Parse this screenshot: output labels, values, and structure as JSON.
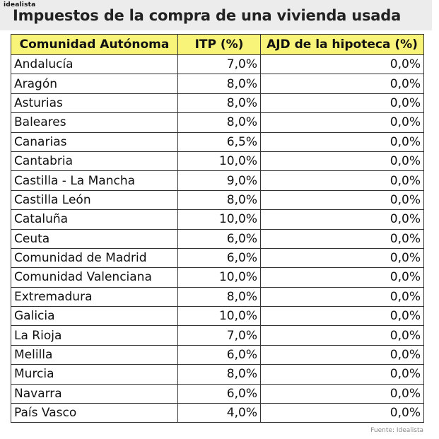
{
  "header": {
    "brand": "idealista",
    "title": "Impuestos de la compra de una vivienda usada"
  },
  "table": {
    "columns": [
      "Comunidad Autónoma",
      "ITP (%)",
      "AJD de la hipoteca (%)"
    ],
    "rows": [
      {
        "region": "Andalucía",
        "itp": "7,0%",
        "ajd": "0,0%"
      },
      {
        "region": "Aragón",
        "itp": "8,0%",
        "ajd": "0,0%"
      },
      {
        "region": "Asturias",
        "itp": "8,0%",
        "ajd": "0,0%"
      },
      {
        "region": "Baleares",
        "itp": "8,0%",
        "ajd": "0,0%"
      },
      {
        "region": "Canarias",
        "itp": "6,5%",
        "ajd": "0,0%"
      },
      {
        "region": "Cantabria",
        "itp": "10,0%",
        "ajd": "0,0%"
      },
      {
        "region": "Castilla - La Mancha",
        "itp": "9,0%",
        "ajd": "0,0%"
      },
      {
        "region": "Castilla León",
        "itp": "8,0%",
        "ajd": "0,0%"
      },
      {
        "region": "Cataluña",
        "itp": "10,0%",
        "ajd": "0,0%"
      },
      {
        "region": "Ceuta",
        "itp": "6,0%",
        "ajd": "0,0%"
      },
      {
        "region": "Comunidad de Madrid",
        "itp": "6,0%",
        "ajd": "0,0%"
      },
      {
        "region": "Comunidad Valenciana",
        "itp": "10,0%",
        "ajd": "0,0%"
      },
      {
        "region": "Extremadura",
        "itp": "8,0%",
        "ajd": "0,0%"
      },
      {
        "region": "Galicia",
        "itp": "10,0%",
        "ajd": "0,0%"
      },
      {
        "region": "La Rioja",
        "itp": "7,0%",
        "ajd": "0,0%"
      },
      {
        "region": "Melilla",
        "itp": "6,0%",
        "ajd": "0,0%"
      },
      {
        "region": "Murcia",
        "itp": "8,0%",
        "ajd": "0,0%"
      },
      {
        "region": "Navarra",
        "itp": "6,0%",
        "ajd": "0,0%"
      },
      {
        "region": "País Vasco",
        "itp": "4,0%",
        "ajd": "0,0%"
      }
    ]
  },
  "footer": {
    "source": "Fuente: Idealista"
  },
  "colors": {
    "header_fill": "#f8f47a",
    "title_band": "#ececec",
    "border": "#333333"
  }
}
